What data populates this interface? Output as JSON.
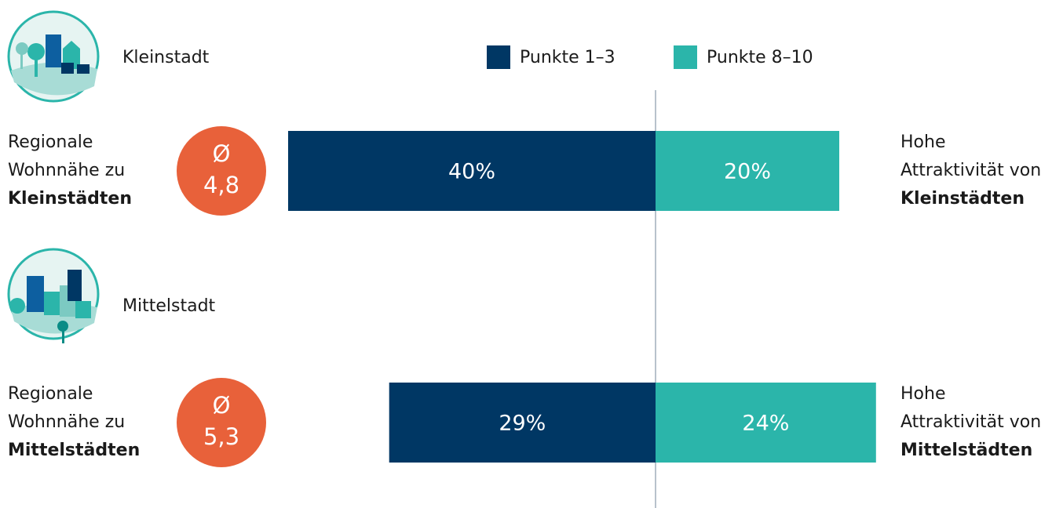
{
  "chart_data": {
    "type": "bar",
    "orientation": "diverging",
    "categories": [
      "Kleinstadt",
      "Mittelstadt"
    ],
    "series": [
      {
        "name": "Punkte 1–3",
        "color": "#003764",
        "direction": "left",
        "values": [
          40,
          29
        ],
        "value_labels": [
          "40%",
          "29%"
        ]
      },
      {
        "name": "Punkte 8–10",
        "color": "#2bb5aa",
        "direction": "right",
        "values": [
          20,
          24
        ],
        "value_labels": [
          "20%",
          "24%"
        ]
      }
    ],
    "left_labels": [
      [
        "Regionale",
        "Wohnnähe zu",
        "Kleinstädten"
      ],
      [
        "Regionale",
        "Wohnnähe zu",
        "Mittelstädten"
      ]
    ],
    "right_labels": [
      [
        "Hohe",
        "Attraktivität von",
        "Kleinstädten"
      ],
      [
        "Hohe",
        "Attraktivität von",
        "Mittelstädten"
      ]
    ],
    "averages": {
      "symbol": "Ø",
      "color": "#e8613a",
      "values": [
        4.8,
        5.3
      ],
      "value_labels": [
        "4,8",
        "5,3"
      ]
    }
  }
}
